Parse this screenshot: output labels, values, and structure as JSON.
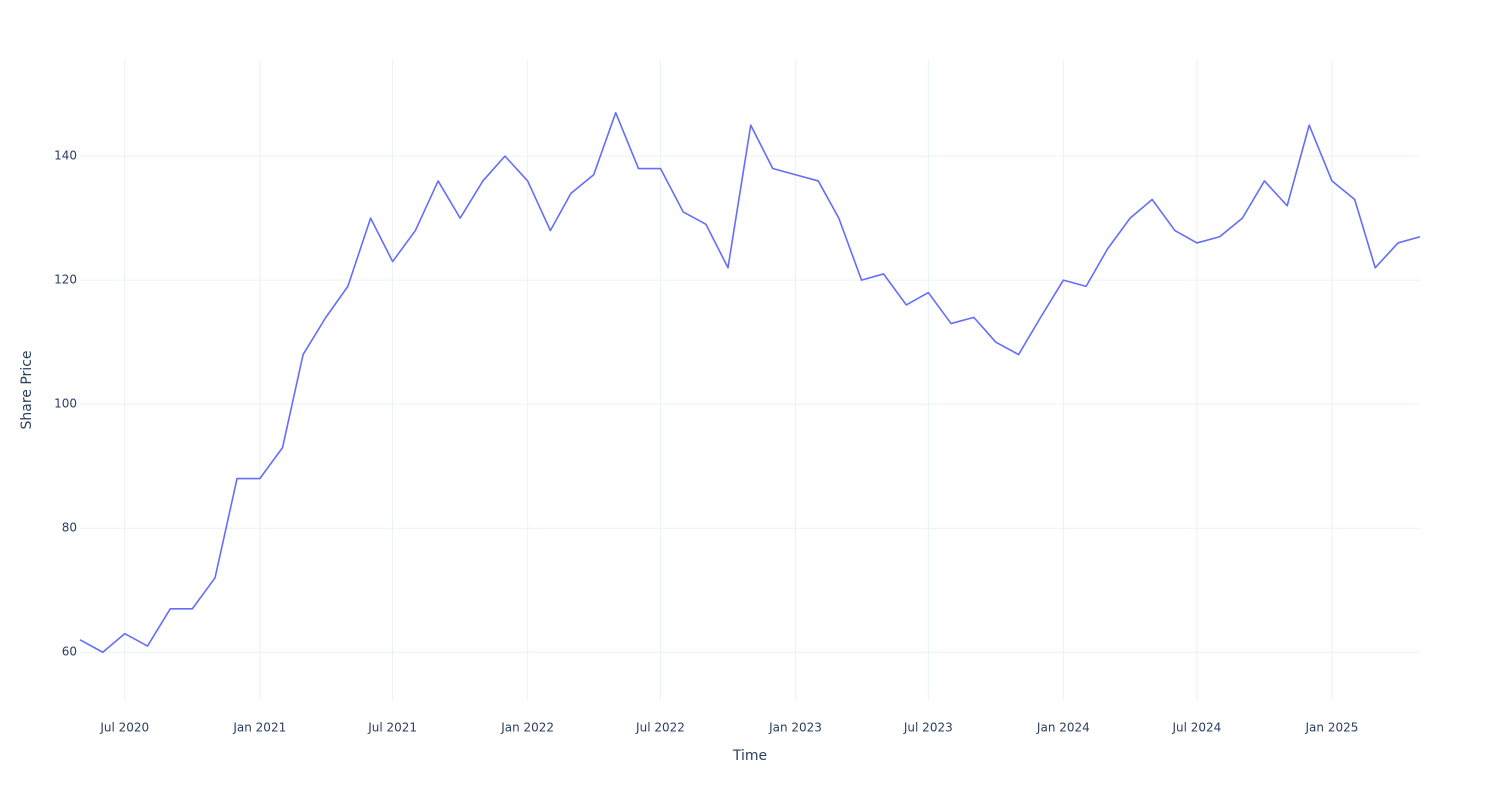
{
  "chart_data": {
    "type": "line",
    "x_label": "Time",
    "y_label": "Share Price",
    "x": [
      "2020-05",
      "2020-06",
      "2020-07",
      "2020-08",
      "2020-09",
      "2020-10",
      "2020-11",
      "2020-12",
      "2021-01",
      "2021-02",
      "2021-03",
      "2021-04",
      "2021-05",
      "2021-06",
      "2021-07",
      "2021-08",
      "2021-09",
      "2021-10",
      "2021-11",
      "2021-12",
      "2022-01",
      "2022-02",
      "2022-03",
      "2022-04",
      "2022-05",
      "2022-06",
      "2022-07",
      "2022-08",
      "2022-09",
      "2022-10",
      "2022-11",
      "2022-12",
      "2023-01",
      "2023-02",
      "2023-03",
      "2023-04",
      "2023-05",
      "2023-06",
      "2023-07",
      "2023-08",
      "2023-09",
      "2023-10",
      "2023-11",
      "2023-12",
      "2024-01",
      "2024-02",
      "2024-03",
      "2024-04",
      "2024-05",
      "2024-06",
      "2024-07",
      "2024-08",
      "2024-09",
      "2024-10",
      "2024-11",
      "2024-12",
      "2025-01",
      "2025-02",
      "2025-03",
      "2025-04",
      "2025-05"
    ],
    "values": [
      62,
      60,
      63,
      61,
      67,
      67,
      72,
      88,
      88,
      93,
      108,
      114,
      119,
      130,
      123,
      128,
      136,
      130,
      136,
      140,
      136,
      128,
      134,
      137,
      147,
      138,
      138,
      131,
      129,
      122,
      145,
      138,
      137,
      136,
      130,
      120,
      121,
      116,
      118,
      113,
      114,
      110,
      108,
      114,
      120,
      119,
      125,
      130,
      133,
      128,
      126,
      127,
      130,
      136,
      132,
      145,
      136,
      133,
      122,
      126,
      127
    ],
    "color": "#636efa",
    "xlim": [
      "2020-05",
      "2025-05"
    ],
    "xticks": [
      {
        "value": "2020-07",
        "label": "Jul 2020"
      },
      {
        "value": "2021-01",
        "label": "Jan 2021"
      },
      {
        "value": "2021-07",
        "label": "Jul 2021"
      },
      {
        "value": "2022-01",
        "label": "Jan 2022"
      },
      {
        "value": "2022-07",
        "label": "Jul 2022"
      },
      {
        "value": "2023-01",
        "label": "Jan 2023"
      },
      {
        "value": "2023-07",
        "label": "Jul 2023"
      },
      {
        "value": "2024-01",
        "label": "Jan 2024"
      },
      {
        "value": "2024-07",
        "label": "Jul 2024"
      },
      {
        "value": "2025-01",
        "label": "Jan 2025"
      }
    ],
    "ylim": [
      52.3,
      155.5
    ],
    "yticks": [
      60,
      80,
      100,
      120,
      140
    ],
    "grid": true
  }
}
